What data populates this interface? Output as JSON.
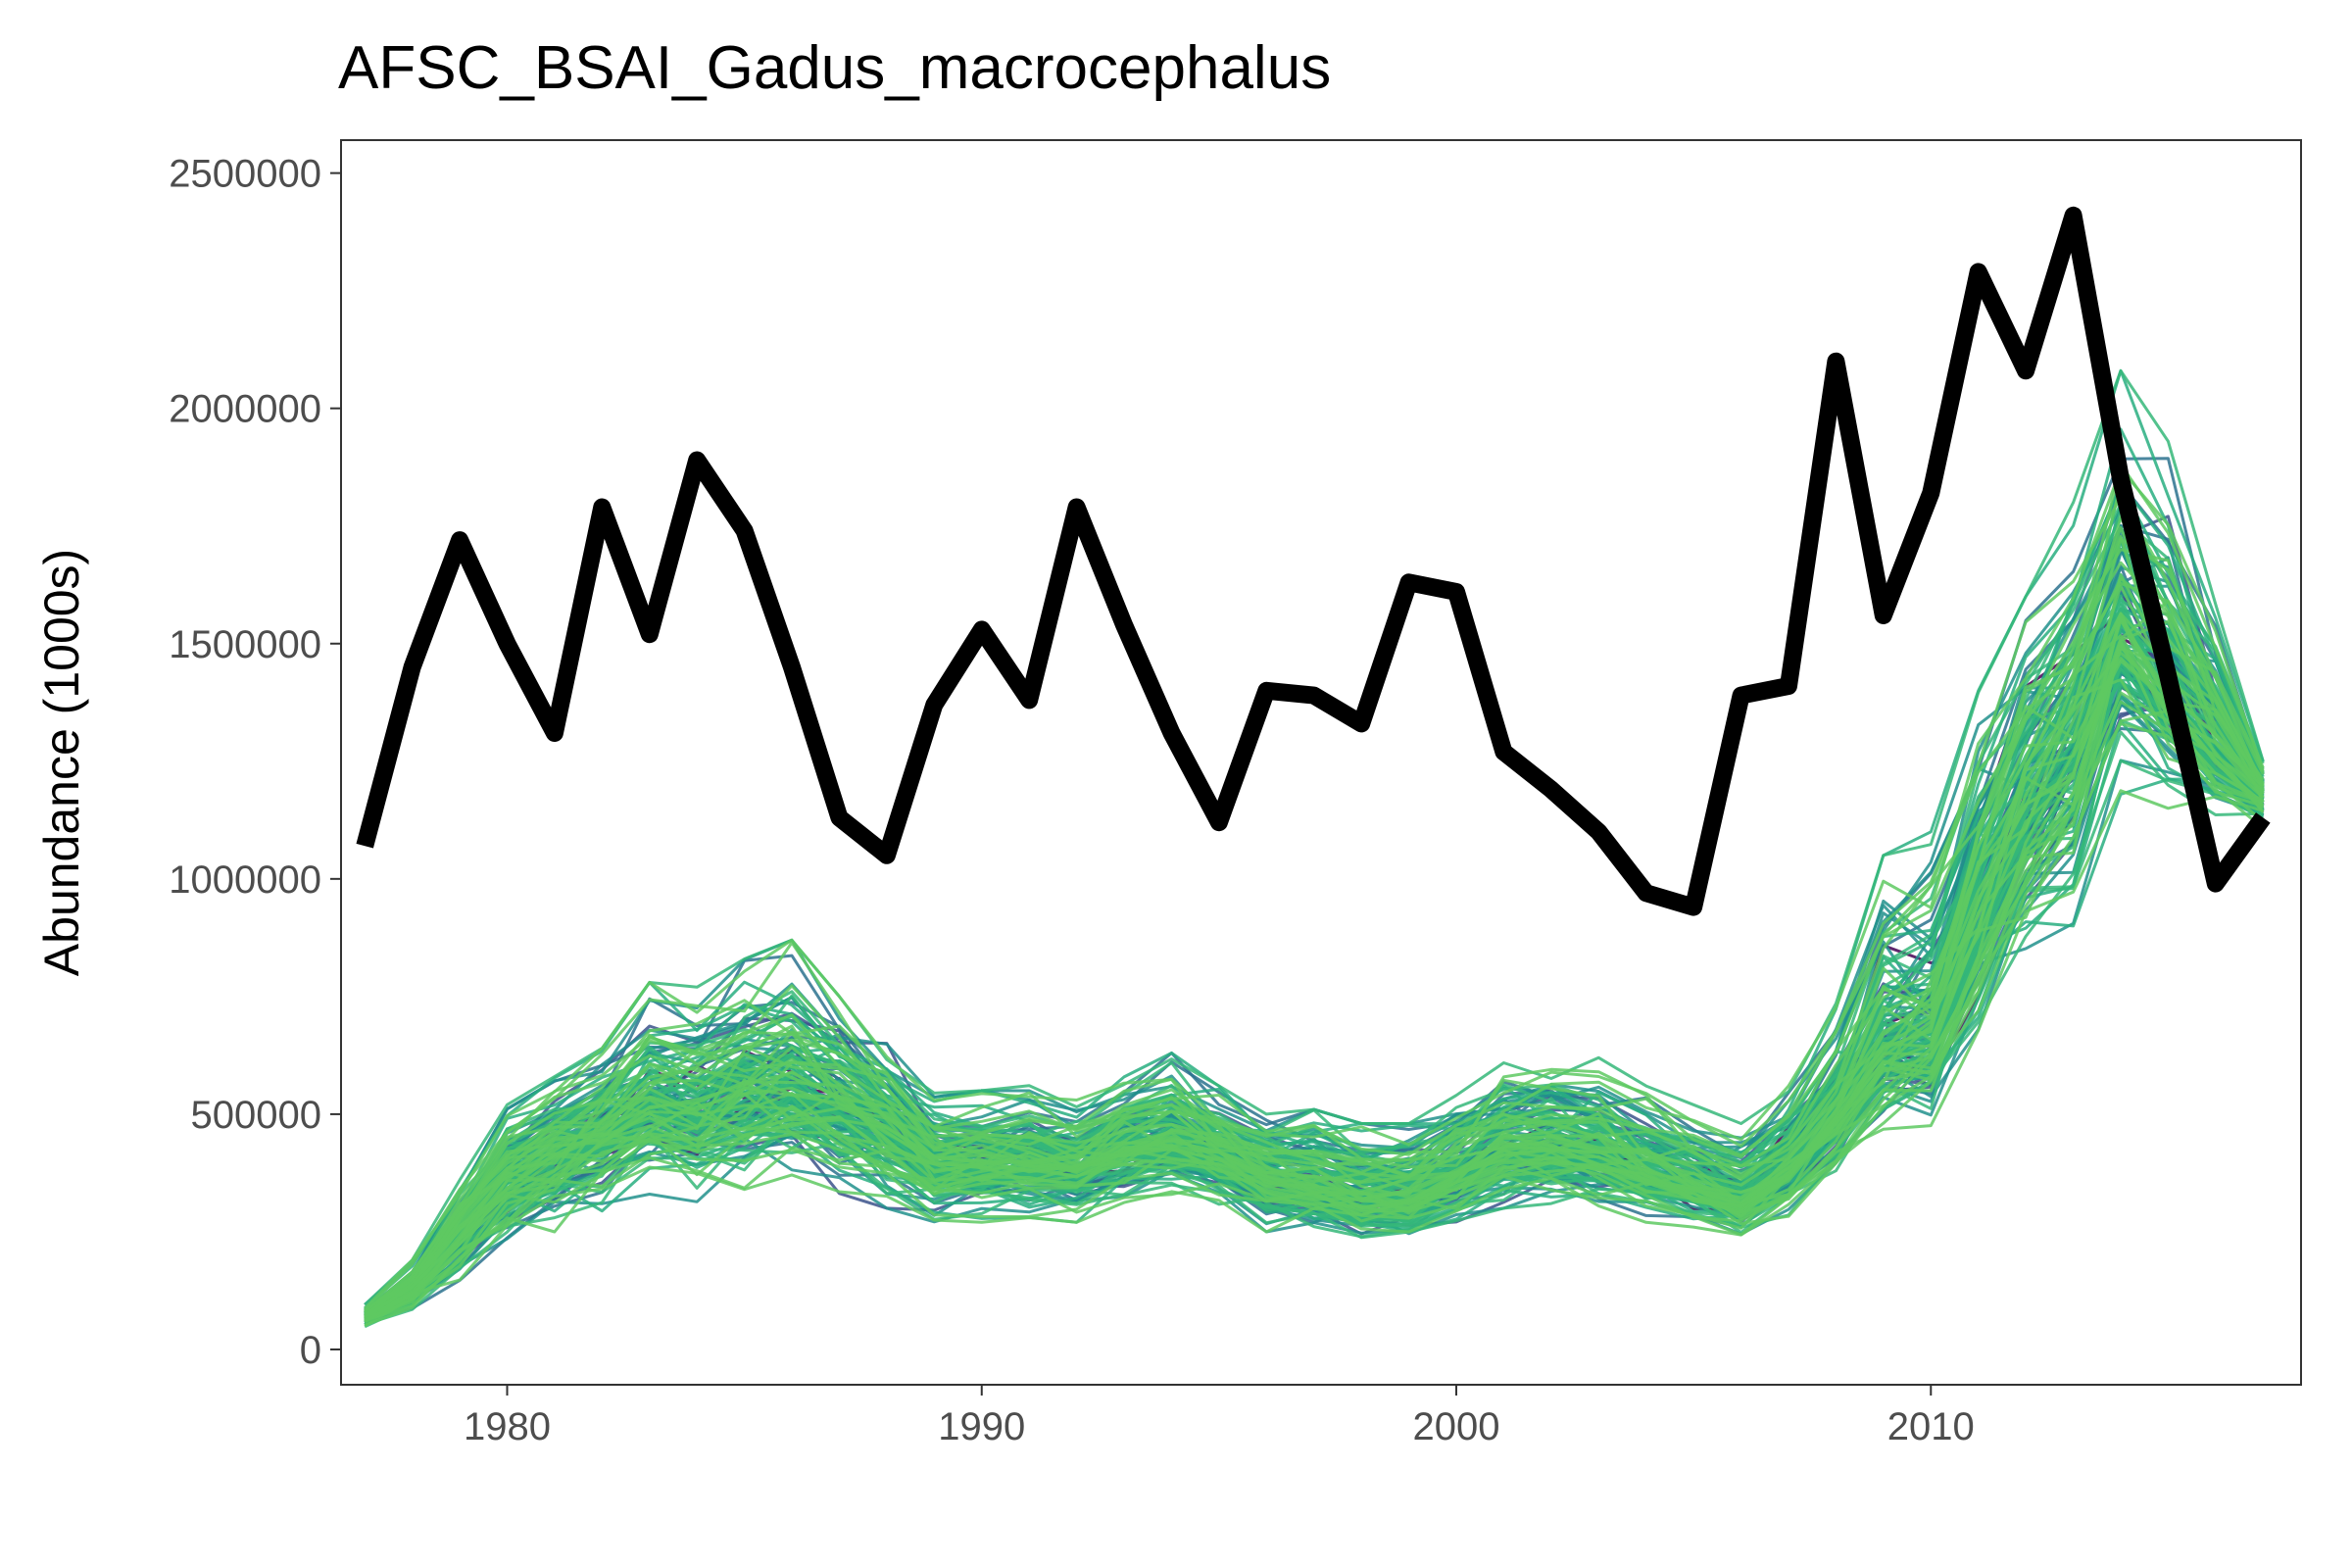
{
  "chart_data": {
    "type": "line",
    "title": "AFSC_BSAI_Gadus_macrocephalus",
    "xlabel": "",
    "ylabel": "Abundance (1000s)",
    "xlim": [
      1976.5,
      2017.8
    ],
    "ylim": [
      -75000,
      2570000
    ],
    "x_ticks": [
      1980,
      1990,
      2000,
      2010
    ],
    "y_ticks": [
      0,
      500000,
      1000000,
      1500000,
      2000000,
      2500000
    ],
    "x_tick_labels": [
      "1980",
      "1990",
      "2000",
      "2010"
    ],
    "y_tick_labels": [
      "0",
      "500000",
      "1000000",
      "1500000",
      "2000000",
      "2500000"
    ],
    "grid": false,
    "legend": "none",
    "years": [
      1977,
      1978,
      1979,
      1980,
      1981,
      1982,
      1983,
      1984,
      1985,
      1986,
      1987,
      1988,
      1989,
      1990,
      1991,
      1992,
      1993,
      1994,
      1995,
      1996,
      1997,
      1998,
      1999,
      2000,
      2001,
      2002,
      2003,
      2004,
      2005,
      2006,
      2007,
      2008,
      2009,
      2010,
      2011,
      2012,
      2013,
      2014,
      2015,
      2016,
      2017
    ],
    "series": [
      {
        "role": "observed",
        "color": "#000000",
        "values": [
          1070000,
          1450000,
          1720000,
          1500000,
          1310000,
          1790000,
          1520000,
          1890000,
          1740000,
          1450000,
          1130000,
          1050000,
          1370000,
          1530000,
          1380000,
          1790000,
          1540000,
          1310000,
          1120000,
          1400000,
          1390000,
          1330000,
          1630000,
          1610000,
          1270000,
          1190000,
          1100000,
          970000,
          940000,
          1390000,
          1410000,
          2100000,
          1560000,
          1820000,
          2290000,
          2080000,
          2410000,
          1850000,
          1430000,
          990000,
          1130000
        ]
      },
      {
        "role": "simulated-median",
        "values": [
          70000,
          130000,
          260000,
          380000,
          430000,
          470000,
          530000,
          520000,
          560000,
          570000,
          530000,
          480000,
          400000,
          400000,
          410000,
          390000,
          430000,
          450000,
          420000,
          370000,
          360000,
          340000,
          340000,
          380000,
          430000,
          440000,
          420000,
          380000,
          350000,
          320000,
          390000,
          510000,
          660000,
          690000,
          980000,
          1170000,
          1310000,
          1560000,
          1410000,
          1300000,
          1180000
        ]
      },
      {
        "role": "simulated-lower",
        "values": [
          45000,
          80000,
          140000,
          200000,
          250000,
          280000,
          330000,
          310000,
          340000,
          360000,
          330000,
          300000,
          270000,
          270000,
          280000,
          270000,
          300000,
          320000,
          300000,
          250000,
          250000,
          230000,
          230000,
          260000,
          300000,
          310000,
          290000,
          270000,
          250000,
          220000,
          270000,
          350000,
          450000,
          470000,
          600000,
          800000,
          900000,
          1180000,
          1150000,
          1100000,
          1100000
        ]
      },
      {
        "role": "simulated-upper",
        "values": [
          95000,
          190000,
          360000,
          520000,
          580000,
          640000,
          780000,
          770000,
          830000,
          870000,
          750000,
          660000,
          550000,
          550000,
          570000,
          530000,
          590000,
          630000,
          560000,
          500000,
          510000,
          480000,
          480000,
          540000,
          620000,
          620000,
          620000,
          560000,
          520000,
          480000,
          560000,
          740000,
          1050000,
          1100000,
          1400000,
          1600000,
          1800000,
          2080000,
          1930000,
          1600000,
          1250000
        ]
      }
    ],
    "ensemble": {
      "count": 150,
      "seed": 17,
      "palette": [
        "#440154",
        "#3b528b",
        "#2c728e",
        "#21918c",
        "#28ae80",
        "#35b779",
        "#5ec962"
      ]
    }
  }
}
